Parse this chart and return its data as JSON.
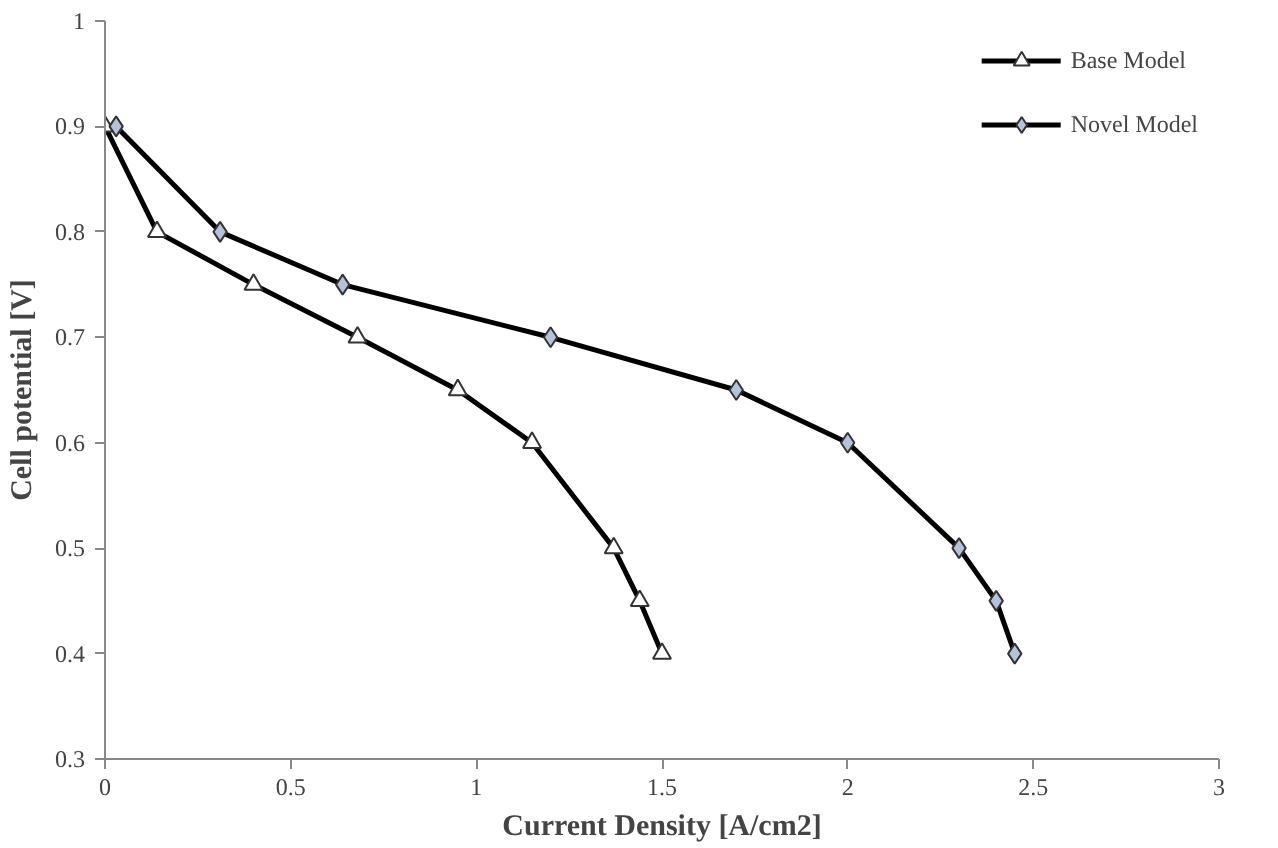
{
  "chart_data": {
    "type": "line",
    "xlabel": "Current Density [A/cm2]",
    "ylabel": "Cell potential [V]",
    "xlim": [
      0,
      3
    ],
    "xticks": [
      0,
      0.5,
      1,
      1.5,
      2,
      2.5,
      3
    ],
    "ylim": [
      0.3,
      1
    ],
    "yticks": [
      0.3,
      0.4,
      0.5,
      0.6,
      0.7,
      0.8,
      0.9,
      1
    ],
    "grid": false,
    "legend": "top right",
    "line_style": "solid",
    "series": [
      {
        "name": "Base Model",
        "color": "#000000",
        "marker": "triangle",
        "x": [
          0,
          0.14,
          0.4,
          0.68,
          0.95,
          1.15,
          1.37,
          1.44,
          1.5
        ],
        "values": [
          0.9,
          0.8,
          0.75,
          0.7,
          0.65,
          0.6,
          0.5,
          0.45,
          0.4
        ]
      },
      {
        "name": "Novel Model",
        "color": "#000000",
        "marker": "diamond",
        "x": [
          0.03,
          0.31,
          0.64,
          1.2,
          1.7,
          2.0,
          2.3,
          2.4,
          2.45
        ],
        "values": [
          0.9,
          0.8,
          0.75,
          0.7,
          0.65,
          0.6,
          0.5,
          0.45,
          0.4
        ]
      }
    ]
  }
}
